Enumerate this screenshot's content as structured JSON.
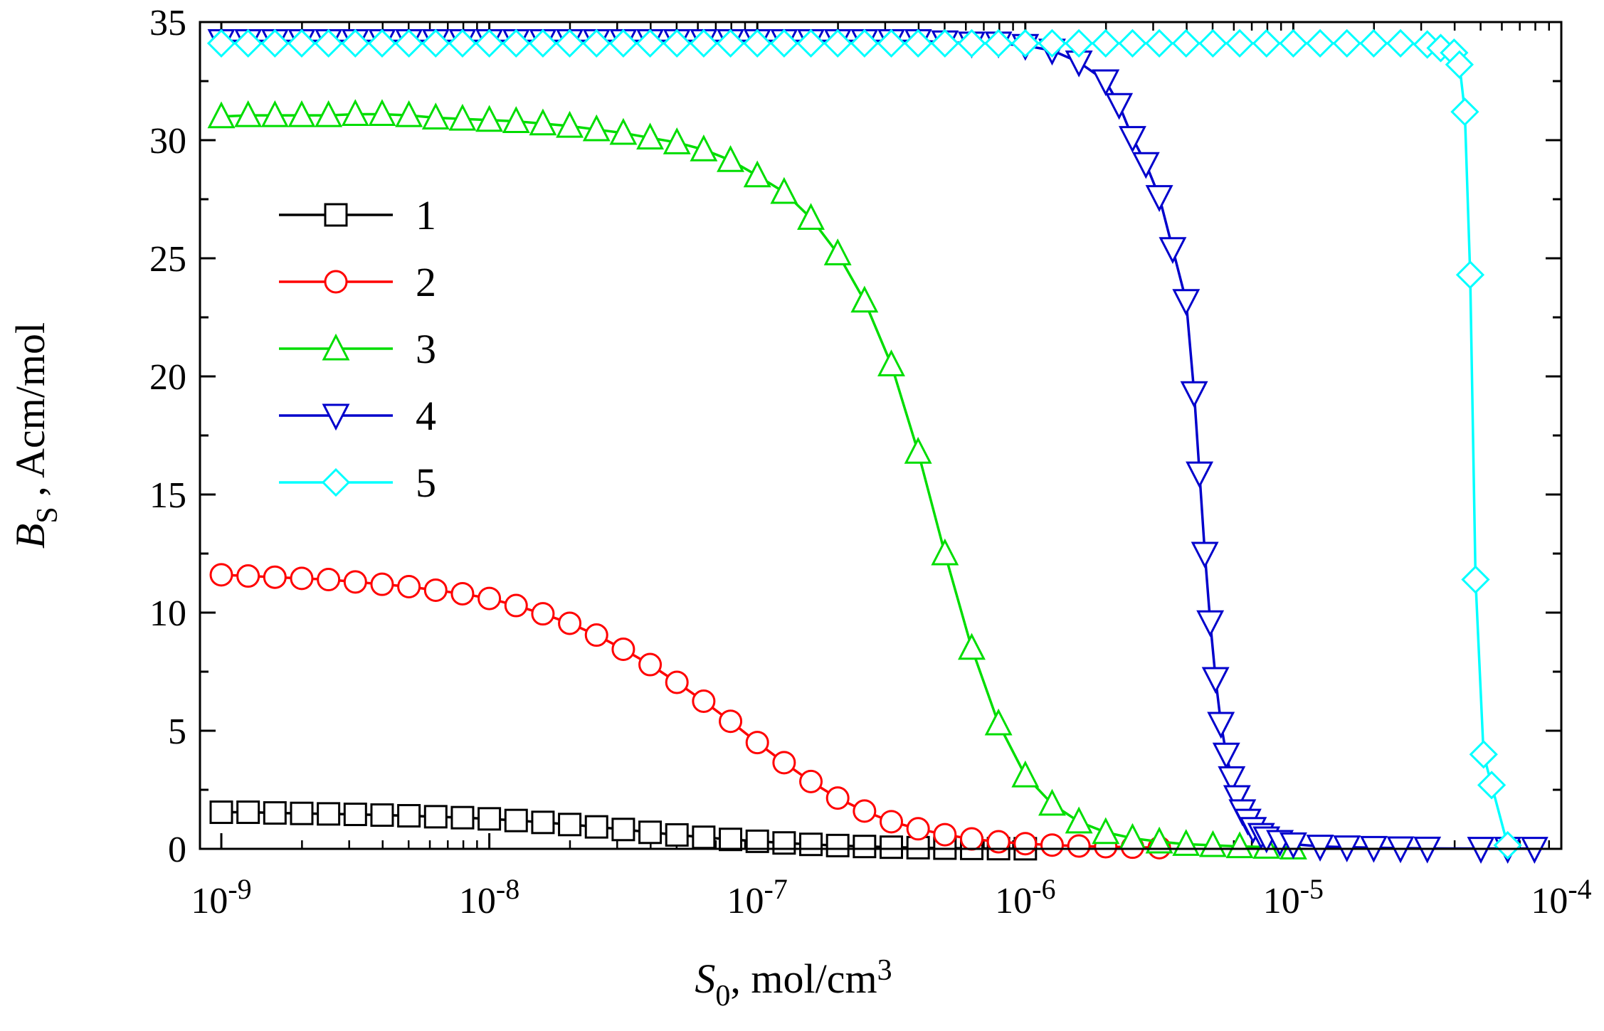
{
  "chart_data": {
    "type": "line",
    "title": "",
    "xscale": "log",
    "xlim": [
      1e-09,
      0.0001
    ],
    "ylim": [
      0,
      35
    ],
    "grid": false,
    "legend_position": "left-upper",
    "x_ticks": [
      {
        "base": "10",
        "exp": "-9"
      },
      {
        "base": "10",
        "exp": "-8"
      },
      {
        "base": "10",
        "exp": "-7"
      },
      {
        "base": "10",
        "exp": "-6"
      },
      {
        "base": "10",
        "exp": "-5"
      },
      {
        "base": "10",
        "exp": "-4"
      }
    ],
    "y_ticks": [
      "0",
      "5",
      "10",
      "15",
      "20",
      "25",
      "30",
      "35"
    ],
    "xlabel": {
      "main": "S",
      "sub": "0",
      "rest": ", mol/cm",
      "sup": "3"
    },
    "ylabel": {
      "main": "B",
      "sub": "S",
      "rest": " ,  Acm/mol"
    },
    "series": [
      {
        "name": "1",
        "color": "#000000",
        "marker": "square",
        "log_x": [
          -9,
          -8.9,
          -8.8,
          -8.7,
          -8.6,
          -8.5,
          -8.4,
          -8.3,
          -8.2,
          -8.1,
          -8.0,
          -7.9,
          -7.8,
          -7.7,
          -7.6,
          -7.5,
          -7.4,
          -7.3,
          -7.2,
          -7.1,
          -7.0,
          -6.9,
          -6.8,
          -6.7,
          -6.6,
          -6.5,
          -6.4,
          -6.3,
          -6.2,
          -6.1,
          -6.0
        ],
        "y": [
          1.55,
          1.55,
          1.52,
          1.5,
          1.48,
          1.46,
          1.43,
          1.4,
          1.36,
          1.32,
          1.27,
          1.2,
          1.12,
          1.03,
          0.93,
          0.82,
          0.7,
          0.59,
          0.49,
          0.4,
          0.32,
          0.25,
          0.19,
          0.14,
          0.1,
          0.07,
          0.05,
          0.03,
          0.02,
          0.01,
          0.005
        ]
      },
      {
        "name": "2",
        "color": "#ff0000",
        "marker": "circle",
        "log_x": [
          -9,
          -8.9,
          -8.8,
          -8.7,
          -8.6,
          -8.5,
          -8.4,
          -8.3,
          -8.2,
          -8.1,
          -8.0,
          -7.9,
          -7.8,
          -7.7,
          -7.6,
          -7.5,
          -7.4,
          -7.3,
          -7.2,
          -7.1,
          -7.0,
          -6.9,
          -6.8,
          -6.7,
          -6.6,
          -6.5,
          -6.4,
          -6.3,
          -6.2,
          -6.1,
          -6.0,
          -5.9,
          -5.8,
          -5.7,
          -5.6,
          -5.5
        ],
        "y": [
          11.6,
          11.55,
          11.5,
          11.45,
          11.4,
          11.3,
          11.2,
          11.1,
          10.95,
          10.8,
          10.6,
          10.3,
          9.95,
          9.55,
          9.05,
          8.45,
          7.8,
          7.05,
          6.25,
          5.4,
          4.5,
          3.65,
          2.85,
          2.15,
          1.6,
          1.15,
          0.85,
          0.6,
          0.42,
          0.3,
          0.22,
          0.16,
          0.12,
          0.09,
          0.07,
          0.05
        ]
      },
      {
        "name": "3",
        "color": "#00dd00",
        "marker": "triangle-up",
        "log_x": [
          -9,
          -8.9,
          -8.8,
          -8.7,
          -8.6,
          -8.5,
          -8.4,
          -8.3,
          -8.2,
          -8.1,
          -8.0,
          -7.9,
          -7.8,
          -7.7,
          -7.6,
          -7.5,
          -7.4,
          -7.3,
          -7.2,
          -7.1,
          -7.0,
          -6.9,
          -6.8,
          -6.7,
          -6.6,
          -6.5,
          -6.4,
          -6.3,
          -6.2,
          -6.1,
          -6.0,
          -5.9,
          -5.8,
          -5.7,
          -5.6,
          -5.5,
          -5.4,
          -5.3,
          -5.2,
          -5.1,
          -5.0
        ],
        "y": [
          31.0,
          31.05,
          31.05,
          31.05,
          31.05,
          31.1,
          31.1,
          31.05,
          30.95,
          30.9,
          30.85,
          30.8,
          30.7,
          30.6,
          30.45,
          30.3,
          30.1,
          29.9,
          29.6,
          29.15,
          28.5,
          27.8,
          26.7,
          25.2,
          23.2,
          20.5,
          16.8,
          12.5,
          8.5,
          5.3,
          3.1,
          1.9,
          1.15,
          0.7,
          0.45,
          0.3,
          0.2,
          0.15,
          0.1,
          0.08,
          0.05
        ]
      },
      {
        "name": "4",
        "color": "#0000cc",
        "marker": "triangle-down",
        "log_x": [
          -9,
          -8.9,
          -8.8,
          -8.7,
          -8.6,
          -8.5,
          -8.4,
          -8.3,
          -8.2,
          -8.1,
          -8.0,
          -7.9,
          -7.8,
          -7.7,
          -7.6,
          -7.5,
          -7.4,
          -7.3,
          -7.2,
          -7.1,
          -7.0,
          -6.9,
          -6.8,
          -6.7,
          -6.6,
          -6.5,
          -6.4,
          -6.3,
          -6.2,
          -6.1,
          -6.0,
          -5.9,
          -5.8,
          -5.7,
          -5.65,
          -5.6,
          -5.55,
          -5.5,
          -5.45,
          -5.4,
          -5.37,
          -5.35,
          -5.33,
          -5.31,
          -5.29,
          -5.27,
          -5.25,
          -5.23,
          -5.21,
          -5.19,
          -5.17,
          -5.15,
          -5.12,
          -5.1,
          -5.05,
          -5.0,
          -4.9,
          -4.8,
          -4.7,
          -4.6,
          -4.5,
          -4.3,
          -4.2,
          -4.1
        ],
        "y": [
          34.2,
          34.2,
          34.2,
          34.2,
          34.2,
          34.2,
          34.2,
          34.2,
          34.2,
          34.2,
          34.2,
          34.2,
          34.2,
          34.2,
          34.2,
          34.2,
          34.2,
          34.2,
          34.2,
          34.2,
          34.2,
          34.2,
          34.2,
          34.2,
          34.2,
          34.2,
          34.2,
          34.15,
          34.1,
          34.1,
          34.0,
          33.8,
          33.3,
          32.5,
          31.5,
          30.1,
          29.0,
          27.6,
          25.4,
          23.2,
          19.3,
          15.9,
          12.5,
          9.6,
          7.2,
          5.3,
          4.0,
          3.0,
          2.2,
          1.6,
          1.2,
          0.85,
          0.6,
          0.45,
          0.3,
          0.2,
          0.1,
          0.07,
          0.05,
          0.03,
          0.02,
          0.01,
          0.01,
          0.01
        ]
      },
      {
        "name": "5",
        "color": "#00ffff",
        "marker": "diamond",
        "log_x": [
          -9,
          -8.9,
          -8.8,
          -8.7,
          -8.6,
          -8.5,
          -8.4,
          -8.3,
          -8.2,
          -8.1,
          -8.0,
          -7.9,
          -7.8,
          -7.7,
          -7.6,
          -7.5,
          -7.4,
          -7.3,
          -7.2,
          -7.1,
          -7.0,
          -6.9,
          -6.8,
          -6.7,
          -6.6,
          -6.5,
          -6.4,
          -6.3,
          -6.2,
          -6.1,
          -6.0,
          -5.9,
          -5.8,
          -5.7,
          -5.6,
          -5.5,
          -5.4,
          -5.3,
          -5.2,
          -5.1,
          -5.0,
          -4.9,
          -4.8,
          -4.7,
          -4.6,
          -4.5,
          -4.45,
          -4.4,
          -4.38,
          -4.36,
          -4.34,
          -4.32,
          -4.29,
          -4.26,
          -4.2
        ],
        "y": [
          34.1,
          34.1,
          34.1,
          34.1,
          34.1,
          34.1,
          34.1,
          34.1,
          34.1,
          34.1,
          34.1,
          34.1,
          34.1,
          34.1,
          34.1,
          34.1,
          34.1,
          34.1,
          34.1,
          34.1,
          34.1,
          34.1,
          34.1,
          34.1,
          34.1,
          34.1,
          34.1,
          34.1,
          34.1,
          34.1,
          34.1,
          34.1,
          34.1,
          34.1,
          34.1,
          34.1,
          34.1,
          34.1,
          34.1,
          34.1,
          34.1,
          34.1,
          34.1,
          34.1,
          34.1,
          34.05,
          33.9,
          33.7,
          33.2,
          31.2,
          24.3,
          11.4,
          4.0,
          2.7,
          0.15
        ]
      }
    ]
  }
}
